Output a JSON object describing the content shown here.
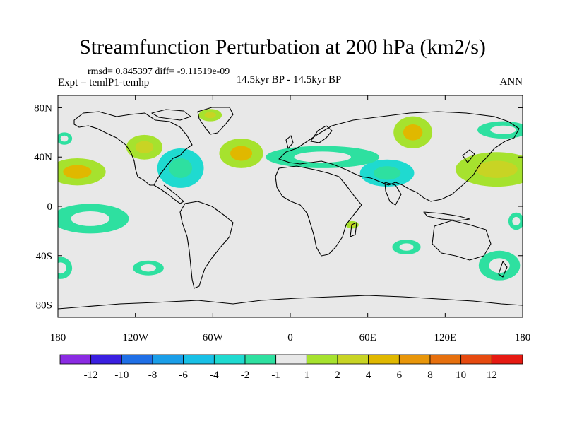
{
  "header": {
    "title": "Streamfunction Perturbation at 200 hPa (km2/s)",
    "stats": "rmsd= 0.845397 diff= -9.11519e-09",
    "experiment": "Expt = temlP1-temhp",
    "period": "14.5kyr BP - 14.5kyr BP",
    "season": "ANN"
  },
  "colors": {
    "background": "#e8e8e8",
    "coast": "#000000",
    "levels": {
      "lt_-12": "#8a2be2",
      "-12_-10": "#3a1fe0",
      "-10_-8": "#1f6fe6",
      "-8_-6": "#1a9ee8",
      "-6_-4": "#18c0e6",
      "-4_-2": "#1fdad0",
      "-2_-1": "#2ee0a0",
      "-1_1": "#e8e8e8",
      "1_2": "#a6e22e",
      "2_4": "#c8d424",
      "4_6": "#e0b800",
      "6_8": "#e8960a",
      "8_10": "#e6700e",
      "10_12": "#e64a10",
      "gt_12": "#e61a12"
    }
  },
  "chart_data": {
    "type": "contour-map",
    "title": "Streamfunction Perturbation at 200 hPa (km2/s)",
    "projection": "cylindrical-equidistant",
    "xlim": [
      -180,
      180
    ],
    "ylim": [
      -90,
      90
    ],
    "x_ticks": [
      {
        "value": -180,
        "label": "180"
      },
      {
        "value": -120,
        "label": "120W"
      },
      {
        "value": -60,
        "label": "60W"
      },
      {
        "value": 0,
        "label": "0"
      },
      {
        "value": 60,
        "label": "60E"
      },
      {
        "value": 120,
        "label": "120E"
      },
      {
        "value": 180,
        "label": "180"
      }
    ],
    "y_ticks": [
      {
        "value": 80,
        "label": "80N"
      },
      {
        "value": 40,
        "label": "40N"
      },
      {
        "value": 0,
        "label": "0"
      },
      {
        "value": -40,
        "label": "40S"
      },
      {
        "value": -80,
        "label": "80S"
      }
    ],
    "colorbar": {
      "levels": [
        -12,
        -10,
        -8,
        -6,
        -4,
        -2,
        -1,
        1,
        2,
        4,
        6,
        8,
        10,
        12
      ],
      "labels": [
        "-12",
        "-10",
        "-8",
        "-6",
        "-4",
        "-2",
        "-1",
        "1",
        "2",
        "4",
        "6",
        "8",
        "10",
        "12"
      ],
      "colors": [
        "#8a2be2",
        "#3a1fe0",
        "#1f6fe6",
        "#1a9ee8",
        "#18c0e6",
        "#1fdad0",
        "#2ee0a0",
        "#e8e8e8",
        "#a6e22e",
        "#c8d424",
        "#e0b800",
        "#e8960a",
        "#e6700e",
        "#e64a10",
        "#e61a12"
      ]
    },
    "anomalies": [
      {
        "lon": -165,
        "lat": 28,
        "rlon": 22,
        "rlat": 11,
        "min": 1,
        "peak": 4
      },
      {
        "lon": -113,
        "lat": 48,
        "rlon": 14,
        "rlat": 10,
        "min": 1,
        "peak": 2
      },
      {
        "lon": -38,
        "lat": 43,
        "rlon": 17,
        "rlat": 12,
        "min": 1,
        "peak": 4
      },
      {
        "lon": -62,
        "lat": 74,
        "rlon": 9,
        "rlat": 5,
        "min": 1,
        "peak": 2
      },
      {
        "lon": 95,
        "lat": 60,
        "rlon": 15,
        "rlat": 13,
        "min": 1,
        "peak": 4
      },
      {
        "lon": 160,
        "lat": 30,
        "rlon": 32,
        "rlat": 14,
        "min": 1,
        "peak": 2
      },
      {
        "lon": -85,
        "lat": 31,
        "rlon": 18,
        "rlat": 16,
        "min": -4,
        "peak": -2
      },
      {
        "lon": 75,
        "lat": 27,
        "rlon": 21,
        "rlat": 11,
        "min": -4,
        "peak": -2
      },
      {
        "lon": 25,
        "lat": 40,
        "rlon": 44,
        "rlat": 9,
        "min": -2,
        "peak": -1
      },
      {
        "lon": -175,
        "lat": 55,
        "rlon": 6,
        "rlat": 5,
        "min": -2,
        "peak": -1
      },
      {
        "lon": -155,
        "lat": -10,
        "rlon": 30,
        "rlat": 12,
        "min": -2,
        "peak": -1
      },
      {
        "lon": -110,
        "lat": -50,
        "rlon": 12,
        "rlat": 6,
        "min": -2,
        "peak": -1
      },
      {
        "lon": 90,
        "lat": -33,
        "rlon": 11,
        "rlat": 6,
        "min": -2,
        "peak": -1
      },
      {
        "lon": 162,
        "lat": -48,
        "rlon": 16,
        "rlat": 12,
        "min": -2,
        "peak": -1
      },
      {
        "lon": -178,
        "lat": -50,
        "rlon": 9,
        "rlat": 9,
        "min": -2,
        "peak": -1
      },
      {
        "lon": 175,
        "lat": -12,
        "rlon": 6,
        "rlat": 7,
        "min": -2,
        "peak": -1
      },
      {
        "lon": 165,
        "lat": 62,
        "rlon": 20,
        "rlat": 7,
        "min": -2,
        "peak": -1
      },
      {
        "lon": 48,
        "lat": -15,
        "rlon": 5,
        "rlat": 3,
        "min": 1,
        "peak": 2
      }
    ]
  }
}
